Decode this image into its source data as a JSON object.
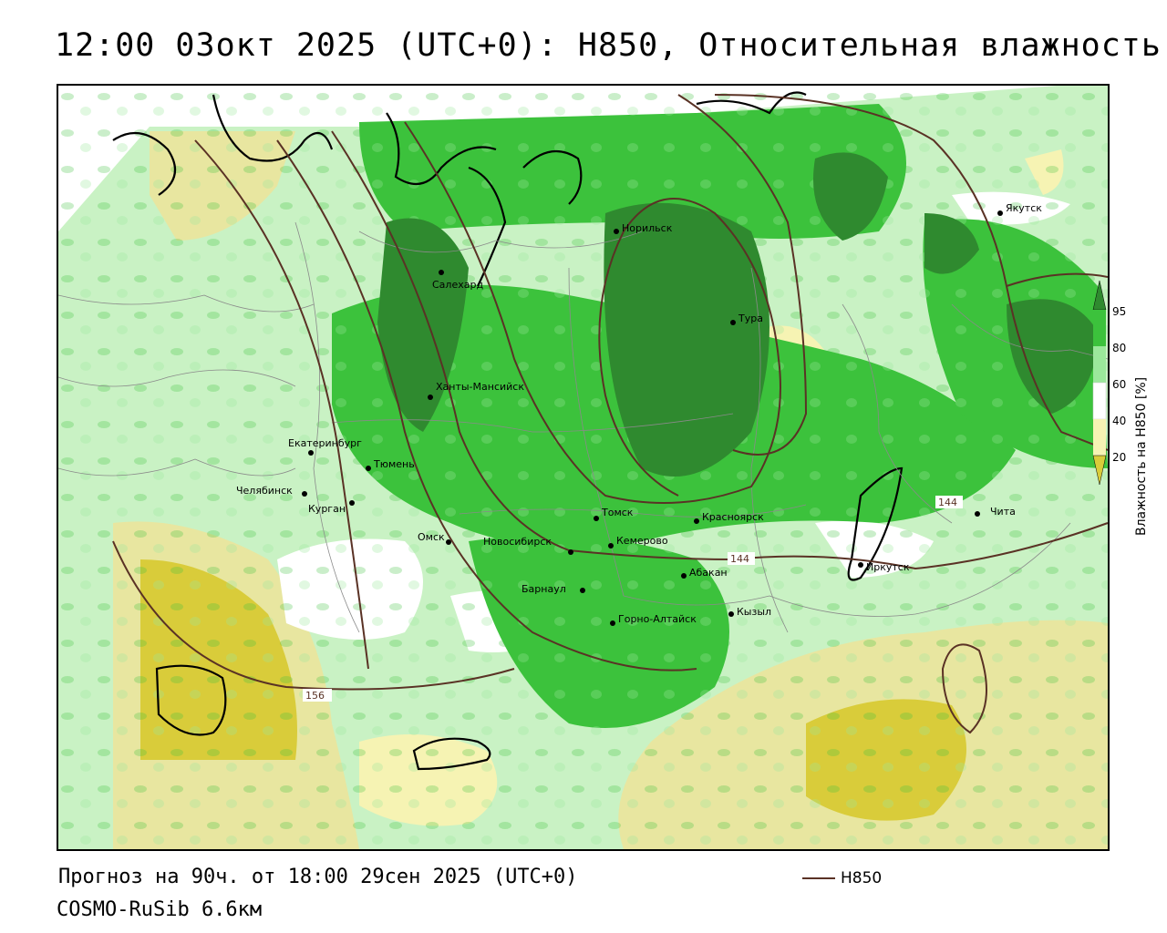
{
  "header": {
    "title": "12:00 03окт 2025 (UTC+0): H850, Относительная влажность"
  },
  "footer": {
    "forecast": "Прогноз на 90ч. от 18:00 29сен 2025 (UTC+0)",
    "model": "COSMO-RuSib 6.6км",
    "contour_legend_label": "H850"
  },
  "legend": {
    "title": "Влажность на H850 [%]",
    "ticks": [
      "95",
      "80",
      "60",
      "40",
      "20"
    ],
    "colors": [
      "#2f8a2f",
      "#3cc23c",
      "#9be89b",
      "#ffffff",
      "#f6f3b3",
      "#e8e6a0",
      "#d9cc3a"
    ]
  },
  "map": {
    "cities": [
      {
        "name": "Якутск"
      },
      {
        "name": "Норильск"
      },
      {
        "name": "Салехард"
      },
      {
        "name": "Тура"
      },
      {
        "name": "Ханты-Мансийск"
      },
      {
        "name": "Екатеринбург"
      },
      {
        "name": "Тюмень"
      },
      {
        "name": "Челябинск"
      },
      {
        "name": "Курган"
      },
      {
        "name": "Омск"
      },
      {
        "name": "Томск"
      },
      {
        "name": "Красноярск"
      },
      {
        "name": "Чита"
      },
      {
        "name": "Новосибирск"
      },
      {
        "name": "Кемерово"
      },
      {
        "name": "Абакан"
      },
      {
        "name": "Иркутск"
      },
      {
        "name": "Барнаул"
      },
      {
        "name": "Кызыл"
      },
      {
        "name": "Горно-Алтайск"
      }
    ],
    "contour_labels": [
      {
        "text": "144"
      },
      {
        "text": "144"
      },
      {
        "text": "156"
      }
    ],
    "colors": {
      "contour": "#5a3225",
      "coast": "#000000",
      "border": "#8a8a8a"
    }
  }
}
